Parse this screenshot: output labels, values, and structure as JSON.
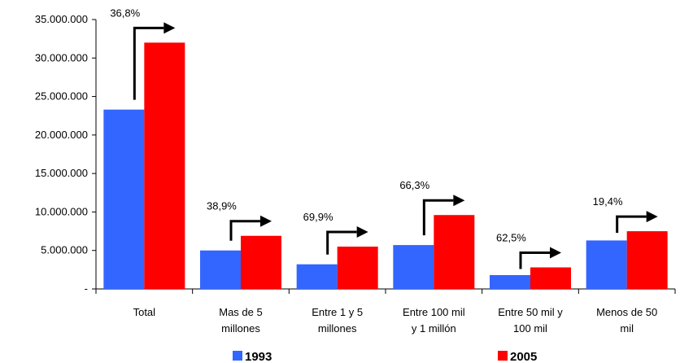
{
  "chart_data": {
    "type": "bar",
    "title": "",
    "xlabel": "",
    "ylabel": "",
    "ylim": [
      0,
      35000000
    ],
    "y_ticks": [
      {
        "value": 35000000,
        "label": "35.000.000"
      },
      {
        "value": 30000000,
        "label": "30.000.000"
      },
      {
        "value": 25000000,
        "label": "25.000.000"
      },
      {
        "value": 20000000,
        "label": "20.000.000"
      },
      {
        "value": 15000000,
        "label": "15.000.000"
      },
      {
        "value": 10000000,
        "label": "10.000.000"
      },
      {
        "value": 5000000,
        "label": "5.000.000"
      },
      {
        "value": 0,
        "label": "-"
      }
    ],
    "categories": [
      [
        "Total"
      ],
      [
        "Mas de 5",
        "millones"
      ],
      [
        "Entre 1 y 5",
        "millones"
      ],
      [
        "Entre 100 mil",
        "y 1 millón"
      ],
      [
        "Entre 50 mil y",
        "100 mil"
      ],
      [
        "Menos de 50",
        "mil"
      ]
    ],
    "series": [
      {
        "name": "1993",
        "color": "#3366ff",
        "values": [
          23300000,
          5000000,
          3200000,
          5700000,
          1800000,
          6300000
        ]
      },
      {
        "name": "2005",
        "color": "#ff0000",
        "values": [
          32000000,
          6900000,
          5500000,
          9600000,
          2800000,
          7500000
        ]
      }
    ],
    "annotations": [
      "36,8%",
      "38,9%",
      "69,9%",
      "66,3%",
      "62,5%",
      "19,4%"
    ],
    "grid": false,
    "legend_position": "bottom"
  }
}
